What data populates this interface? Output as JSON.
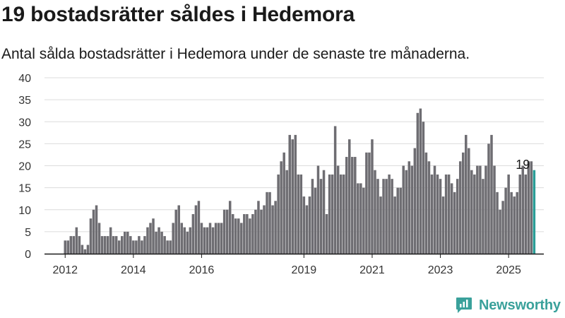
{
  "header": {
    "title": "19 bostadsrätter såldes i Hedemora",
    "subtitle": "Antal sålda bostadsrätter i Hedemora under de senaste tre månaderna."
  },
  "brand": {
    "name": "Newsworthy",
    "icon": "newsworthy-logo-icon"
  },
  "colors": {
    "bar": "#6e6d72",
    "highlight": "#2a9d96",
    "grid": "#dcdcdc",
    "axis": "#1a1a1a",
    "brand": "#3aa19b"
  },
  "chart_data": {
    "type": "bar",
    "x_start": "2012-01",
    "x_interval": "month",
    "ylim": [
      0,
      40
    ],
    "yticks": [
      0,
      5,
      10,
      15,
      20,
      25,
      30,
      35,
      40
    ],
    "xticks": [
      "2012",
      "2014",
      "2016",
      "2019",
      "2021",
      "2023",
      "2025"
    ],
    "xtick_dates": [
      "2012-01",
      "2014-01",
      "2016-01",
      "2019-01",
      "2021-01",
      "2023-01",
      "2025-01"
    ],
    "annotation": {
      "text": "19",
      "date": "2025-07"
    },
    "highlight_last": true,
    "values": [
      3,
      3,
      4,
      4,
      6,
      4,
      2,
      1,
      2,
      8,
      10,
      11,
      7,
      4,
      4,
      4,
      6,
      4,
      4,
      3,
      4,
      5,
      5,
      4,
      3,
      3,
      4,
      3,
      4,
      6,
      7,
      8,
      5,
      6,
      5,
      4,
      3,
      3,
      7,
      10,
      11,
      7,
      6,
      5,
      6,
      9,
      11,
      12,
      7,
      6,
      6,
      7,
      6,
      7,
      7,
      7,
      10,
      10,
      12,
      9,
      8,
      8,
      7,
      9,
      9,
      8,
      9,
      10,
      12,
      10,
      11,
      14,
      14,
      11,
      12,
      18,
      21,
      23,
      19,
      27,
      26,
      27,
      18,
      18,
      13,
      11,
      13,
      17,
      15,
      20,
      17,
      19,
      9,
      18,
      18,
      29,
      20,
      18,
      18,
      22,
      26,
      22,
      22,
      16,
      16,
      15,
      23,
      23,
      26,
      19,
      17,
      13,
      17,
      17,
      18,
      17,
      13,
      15,
      15,
      20,
      19,
      21,
      20,
      24,
      32,
      33,
      30,
      23,
      21,
      18,
      20,
      18,
      17,
      13,
      18,
      18,
      16,
      14,
      17,
      21,
      23,
      27,
      24,
      19,
      18,
      20,
      20,
      17,
      20,
      25,
      27,
      20,
      14,
      10,
      12,
      15,
      18,
      14,
      13,
      14,
      18,
      20,
      18,
      21,
      21,
      19
    ]
  }
}
